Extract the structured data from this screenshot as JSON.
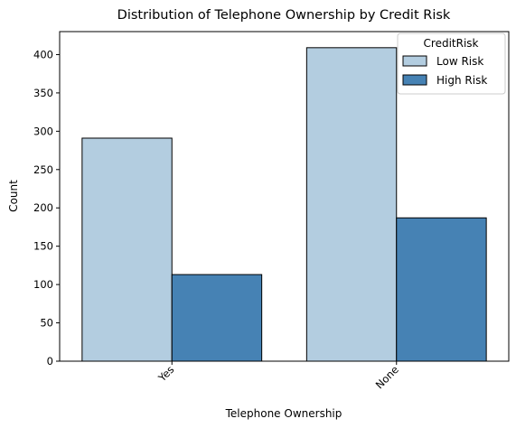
{
  "chart_data": {
    "type": "bar",
    "title": "Distribution of Telephone Ownership by Credit Risk",
    "xlabel": "Telephone Ownership",
    "ylabel": "Count",
    "categories": [
      "Yes",
      "None"
    ],
    "series": [
      {
        "name": "Low Risk",
        "values": [
          291,
          409
        ],
        "color": "#b3cde0"
      },
      {
        "name": "High Risk",
        "values": [
          113,
          187
        ],
        "color": "#4682b4"
      }
    ],
    "ylim": [
      0,
      430
    ],
    "yticks": [
      "0",
      "50",
      "100",
      "150",
      "200",
      "250",
      "300",
      "350",
      "400"
    ],
    "ytick_values": [
      0,
      50,
      100,
      150,
      200,
      250,
      300,
      350,
      400
    ],
    "legend": {
      "title": "CreditRisk",
      "placement": "top-right"
    },
    "grid": false
  }
}
